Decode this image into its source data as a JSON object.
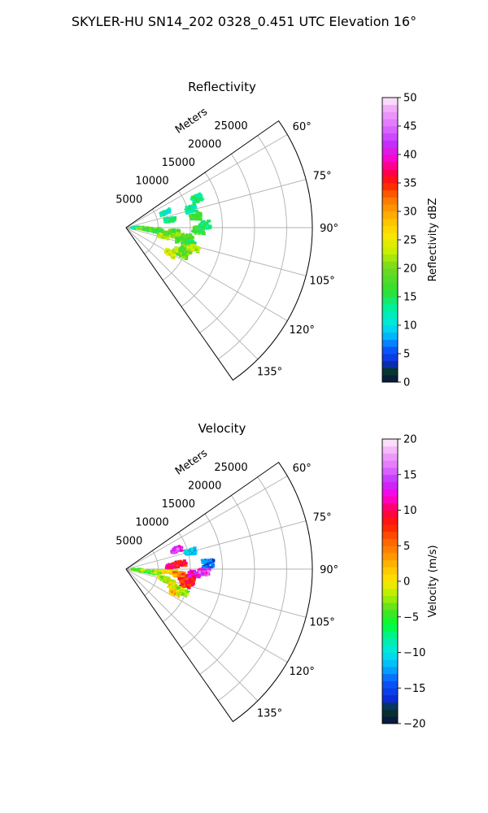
{
  "suptitle": "SKYLER-HU  SN14_202  0328_0.451 UTC Elevation 16°",
  "colors": {
    "grid": "#b0b0b0",
    "frame": "#000000",
    "background": "#ffffff"
  },
  "chart_data": [
    {
      "type": "polar-sector",
      "title": "Reflectivity",
      "radial_label": "Meters",
      "theta_range_deg": [
        55,
        145
      ],
      "r_max": 29000,
      "radial_ticks": [
        5000,
        10000,
        15000,
        20000,
        25000
      ],
      "radial_tick_labels": [
        "5000",
        "10000",
        "15000",
        "20000",
        "25000"
      ],
      "angle_ticks": [
        60,
        75,
        90,
        105,
        120,
        135
      ],
      "angle_tick_labels": [
        "60°",
        "75°",
        "90°",
        "105°",
        "120°",
        "135°"
      ],
      "grid": true,
      "colorbar": {
        "label": "Reflectivity dBZ",
        "min": 0,
        "max": 50,
        "ticks": [
          0,
          5,
          10,
          15,
          20,
          25,
          30,
          35,
          40,
          45,
          50
        ],
        "tick_labels": [
          "0",
          "5",
          "10",
          "15",
          "20",
          "25",
          "30",
          "35",
          "40",
          "45",
          "50"
        ],
        "color_stops": [
          [
            0,
            "#0a1045"
          ],
          [
            2,
            "#063a2a"
          ],
          [
            3.5,
            "#0b2bd8"
          ],
          [
            6,
            "#0a5cff"
          ],
          [
            8,
            "#00b4ff"
          ],
          [
            10,
            "#00e6e6"
          ],
          [
            13,
            "#00f0a0"
          ],
          [
            16,
            "#30e030"
          ],
          [
            20,
            "#70d820"
          ],
          [
            23,
            "#c8f000"
          ],
          [
            26,
            "#ffe600"
          ],
          [
            29,
            "#ffb400"
          ],
          [
            32,
            "#ff7a00"
          ],
          [
            35,
            "#ff1a00"
          ],
          [
            37,
            "#ff0050"
          ],
          [
            39,
            "#ff00c8"
          ],
          [
            42,
            "#c030ff"
          ],
          [
            45,
            "#e070ff"
          ],
          [
            48,
            "#f0a8f8"
          ],
          [
            50,
            "#fff0fa"
          ]
        ]
      },
      "echo_clusters": [
        {
          "r": 1800,
          "theta": 90,
          "value": 14
        },
        {
          "r": 2600,
          "theta": 93,
          "value": 20
        },
        {
          "r": 3600,
          "theta": 95,
          "value": 17
        },
        {
          "r": 4600,
          "theta": 94,
          "value": 19
        },
        {
          "r": 5200,
          "theta": 97,
          "value": 16
        },
        {
          "r": 6000,
          "theta": 103,
          "value": 22
        },
        {
          "r": 6800,
          "theta": 98,
          "value": 20
        },
        {
          "r": 7600,
          "theta": 95,
          "value": 18
        },
        {
          "r": 8200,
          "theta": 99,
          "value": 21
        },
        {
          "r": 8800,
          "theta": 103,
          "value": 19
        },
        {
          "r": 9600,
          "theta": 99,
          "value": 18
        },
        {
          "r": 10200,
          "theta": 104,
          "value": 16
        },
        {
          "r": 11300,
          "theta": 92,
          "value": 17
        },
        {
          "r": 12300,
          "theta": 88,
          "value": 15
        },
        {
          "r": 11000,
          "theta": 81,
          "value": 17
        },
        {
          "r": 10500,
          "theta": 74,
          "value": 13
        },
        {
          "r": 12000,
          "theta": 68,
          "value": 14
        },
        {
          "r": 8000,
          "theta": 120,
          "value": 24
        },
        {
          "r": 9000,
          "theta": 114,
          "value": 21
        },
        {
          "r": 10000,
          "theta": 110,
          "value": 20
        },
        {
          "r": 11000,
          "theta": 107,
          "value": 23
        },
        {
          "r": 9800,
          "theta": 115,
          "value": 19
        },
        {
          "r": 7000,
          "theta": 80,
          "value": 14
        },
        {
          "r": 6500,
          "theta": 69,
          "value": 12
        }
      ]
    },
    {
      "type": "polar-sector",
      "title": "Velocity",
      "radial_label": "Meters",
      "theta_range_deg": [
        55,
        145
      ],
      "r_max": 29000,
      "radial_ticks": [
        5000,
        10000,
        15000,
        20000,
        25000
      ],
      "radial_tick_labels": [
        "5000",
        "10000",
        "15000",
        "20000",
        "25000"
      ],
      "angle_ticks": [
        60,
        75,
        90,
        105,
        120,
        135
      ],
      "angle_tick_labels": [
        "60°",
        "75°",
        "90°",
        "105°",
        "120°",
        "135°"
      ],
      "grid": true,
      "colorbar": {
        "label": "Velocity (m/s)",
        "min": -20,
        "max": 20,
        "ticks": [
          -20,
          -15,
          -10,
          -5,
          0,
          5,
          10,
          15,
          20
        ],
        "tick_labels": [
          "−20",
          "−15",
          "−10",
          "−5",
          "0",
          "5",
          "10",
          "15",
          "20"
        ],
        "color_stops": [
          [
            -20,
            "#0a1045"
          ],
          [
            -18,
            "#063a2a"
          ],
          [
            -16.5,
            "#0b2bd8"
          ],
          [
            -14,
            "#0a5cff"
          ],
          [
            -12,
            "#00b4ff"
          ],
          [
            -10,
            "#00e6e6"
          ],
          [
            -8,
            "#00f0a0"
          ],
          [
            -6,
            "#00ff30"
          ],
          [
            -4,
            "#50e020"
          ],
          [
            -2,
            "#b0f000"
          ],
          [
            0,
            "#ffe600"
          ],
          [
            2,
            "#ffc000"
          ],
          [
            4,
            "#ff8c00"
          ],
          [
            6,
            "#ff5a00"
          ],
          [
            8,
            "#ff1a00"
          ],
          [
            10,
            "#ff0050"
          ],
          [
            12,
            "#ff00e0"
          ],
          [
            14,
            "#c030ff"
          ],
          [
            16,
            "#e070ff"
          ],
          [
            18,
            "#f0a8f8"
          ],
          [
            20,
            "#fff0fa"
          ]
        ]
      },
      "echo_clusters": [
        {
          "r": 1800,
          "theta": 93,
          "value": -4
        },
        {
          "r": 2800,
          "theta": 96,
          "value": -3
        },
        {
          "r": 4000,
          "theta": 97,
          "value": -5
        },
        {
          "r": 5000,
          "theta": 95,
          "value": -2
        },
        {
          "r": 6000,
          "theta": 104,
          "value": -3
        },
        {
          "r": 7000,
          "theta": 106,
          "value": -1
        },
        {
          "r": 8000,
          "theta": 110,
          "value": 0
        },
        {
          "r": 8500,
          "theta": 116,
          "value": 2
        },
        {
          "r": 7000,
          "theta": 93,
          "value": 0
        },
        {
          "r": 8200,
          "theta": 96,
          "value": 4
        },
        {
          "r": 9200,
          "theta": 98,
          "value": 7
        },
        {
          "r": 10000,
          "theta": 101,
          "value": 9
        },
        {
          "r": 9500,
          "theta": 104,
          "value": 8
        },
        {
          "r": 10600,
          "theta": 94,
          "value": 12
        },
        {
          "r": 12200,
          "theta": 92,
          "value": 14
        },
        {
          "r": 12800,
          "theta": 86,
          "value": -14
        },
        {
          "r": 10400,
          "theta": 75,
          "value": -11
        },
        {
          "r": 7200,
          "theta": 86,
          "value": 10
        },
        {
          "r": 8500,
          "theta": 84,
          "value": 9
        },
        {
          "r": 8400,
          "theta": 69,
          "value": 14
        },
        {
          "r": 9500,
          "theta": 112,
          "value": -2
        }
      ]
    }
  ]
}
